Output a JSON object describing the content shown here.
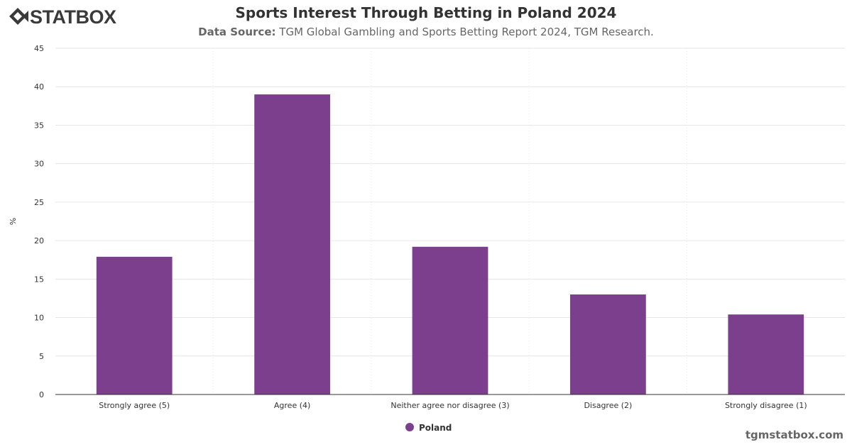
{
  "header": {
    "logo_text": "STATBOX",
    "title": "Sports Interest Through Betting in Poland 2024",
    "source_label": "Data Source:",
    "source_text": "TGM Global Gambling and Sports Betting Report 2024, TGM Research."
  },
  "footer": {
    "url": "tgmstatbox.com"
  },
  "colors": {
    "bar": "#7b3f8e",
    "grid": "#e6e6e6",
    "axis": "#333333",
    "text": "#333333",
    "logo": "#3a3a3a"
  },
  "chart_data": {
    "type": "bar",
    "categories": [
      "Strongly agree (5)",
      "Agree (4)",
      "Neither agree nor disagree (3)",
      "Disagree (2)",
      "Strongly disagree (1)"
    ],
    "series": [
      {
        "name": "Poland",
        "values": [
          17.9,
          39.0,
          19.2,
          13.0,
          10.4
        ]
      }
    ],
    "ylabel": "%",
    "ylim": [
      0,
      45
    ],
    "yticks": [
      0,
      5,
      10,
      15,
      20,
      25,
      30,
      35,
      40,
      45
    ],
    "grid": true,
    "legend_position": "bottom-center"
  }
}
